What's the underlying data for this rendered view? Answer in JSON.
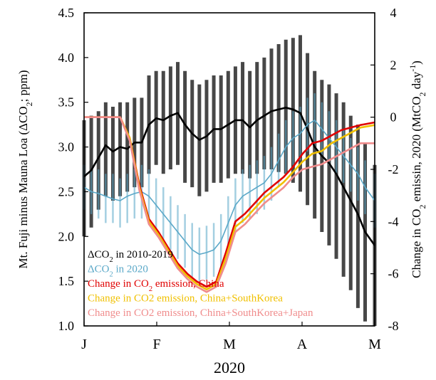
{
  "chart_data": {
    "type": "line",
    "title": "",
    "xlabel": "2020",
    "ylabel_left_parts": [
      "Mt. Fuji minus Mauna Loa (",
      "Δ",
      "CO",
      "2",
      "; ppm)"
    ],
    "ylabel_right_parts": [
      "Change in CO",
      "2",
      " emissin, 2020 (MtCO",
      "2",
      " day",
      "-1",
      ")"
    ],
    "x_ticks": [
      "J",
      "F",
      "M",
      "A",
      "M"
    ],
    "y_left": {
      "min": 1.0,
      "max": 4.5,
      "ticks": [
        "1.0",
        "1.5",
        "2.0",
        "2.5",
        "3.0",
        "3.5",
        "4.0",
        "4.5"
      ]
    },
    "y_right": {
      "min": -8,
      "max": 4,
      "ticks": [
        "-8",
        "-6",
        "-4",
        "-2",
        "0",
        "2",
        "4"
      ]
    },
    "grid": false,
    "legend_position": "bottom-left",
    "legend": [
      {
        "id": "hist",
        "parts": [
          "Δ",
          "CO",
          "2",
          " in 2010-2019"
        ],
        "color": "#000000"
      },
      {
        "id": "now",
        "parts": [
          "Δ",
          "CO",
          "2",
          " in 2020"
        ],
        "color": "#5aa8c8"
      },
      {
        "id": "china",
        "parts": [
          "Change in CO",
          "2",
          " emission, China"
        ],
        "color": "#e00000"
      },
      {
        "id": "cnkr",
        "parts": [
          "Change in CO2 emission,  China+SouthKorea"
        ],
        "color": "#f0c000"
      },
      {
        "id": "cnkrjp",
        "parts": [
          "Change in CO2 emission,  China+SouthKorea+Japan"
        ],
        "color": "#f08c8c"
      }
    ],
    "x_domain": {
      "start": "2020-01-01",
      "end": "2020-05-01"
    },
    "series": [
      {
        "axis": "left",
        "color": "#000000",
        "x": [
          "2020-01-01",
          "2020-01-04",
          "2020-01-07",
          "2020-01-10",
          "2020-01-13",
          "2020-01-16",
          "2020-01-19",
          "2020-01-22",
          "2020-01-25",
          "2020-01-28",
          "2020-01-31",
          "2020-02-03",
          "2020-02-06",
          "2020-02-09",
          "2020-02-12",
          "2020-02-15",
          "2020-02-18",
          "2020-02-21",
          "2020-02-24",
          "2020-02-27",
          "2020-03-01",
          "2020-03-04",
          "2020-03-07",
          "2020-03-10",
          "2020-03-13",
          "2020-03-16",
          "2020-03-19",
          "2020-03-22",
          "2020-03-25",
          "2020-03-28",
          "2020-03-31",
          "2020-04-03",
          "2020-04-06",
          "2020-04-09",
          "2020-04-12",
          "2020-04-15",
          "2020-04-18",
          "2020-04-21",
          "2020-04-24",
          "2020-04-27",
          "2020-05-01"
        ],
        "y": [
          2.67,
          2.74,
          2.88,
          3.02,
          2.95,
          3.0,
          2.98,
          3.05,
          3.05,
          3.25,
          3.32,
          3.3,
          3.35,
          3.38,
          3.25,
          3.15,
          3.08,
          3.12,
          3.2,
          3.2,
          3.25,
          3.3,
          3.3,
          3.22,
          3.3,
          3.35,
          3.4,
          3.42,
          3.44,
          3.42,
          3.38,
          3.2,
          3.0,
          2.9,
          2.82,
          2.7,
          2.55,
          2.4,
          2.25,
          2.05,
          1.9
        ],
        "y_low": [
          2.0,
          2.1,
          2.3,
          2.45,
          2.4,
          2.45,
          2.5,
          2.55,
          2.55,
          2.7,
          2.8,
          2.7,
          2.75,
          2.8,
          2.6,
          2.55,
          2.45,
          2.5,
          2.6,
          2.6,
          2.65,
          2.7,
          2.7,
          2.65,
          2.7,
          2.75,
          2.75,
          2.72,
          2.7,
          2.6,
          2.5,
          2.35,
          2.2,
          2.05,
          1.9,
          1.75,
          1.55,
          1.4,
          1.2,
          1.05,
          1.0
        ],
        "y_high": [
          3.3,
          3.35,
          3.4,
          3.5,
          3.45,
          3.5,
          3.5,
          3.55,
          3.55,
          3.8,
          3.85,
          3.85,
          3.9,
          3.95,
          3.85,
          3.75,
          3.7,
          3.75,
          3.8,
          3.8,
          3.85,
          3.9,
          3.95,
          3.85,
          3.95,
          4.0,
          4.1,
          4.15,
          4.2,
          4.22,
          4.25,
          4.05,
          3.85,
          3.75,
          3.7,
          3.6,
          3.5,
          3.35,
          3.25,
          3.05,
          2.8
        ]
      },
      {
        "axis": "left",
        "color": "#5aa8c8",
        "x": [
          "2020-01-01",
          "2020-01-04",
          "2020-01-07",
          "2020-01-10",
          "2020-01-13",
          "2020-01-16",
          "2020-01-19",
          "2020-01-22",
          "2020-01-25",
          "2020-01-28",
          "2020-01-31",
          "2020-02-03",
          "2020-02-06",
          "2020-02-09",
          "2020-02-12",
          "2020-02-15",
          "2020-02-18",
          "2020-02-21",
          "2020-02-24",
          "2020-02-27",
          "2020-03-01",
          "2020-03-04",
          "2020-03-07",
          "2020-03-10",
          "2020-03-13",
          "2020-03-16",
          "2020-03-19",
          "2020-03-22",
          "2020-03-25",
          "2020-03-28",
          "2020-03-31",
          "2020-04-03",
          "2020-04-06",
          "2020-04-09",
          "2020-04-12",
          "2020-04-15",
          "2020-04-18",
          "2020-04-21",
          "2020-04-24",
          "2020-04-27",
          "2020-05-01"
        ],
        "y": [
          2.55,
          2.5,
          2.48,
          2.45,
          2.42,
          2.4,
          2.45,
          2.48,
          2.5,
          2.45,
          2.35,
          2.25,
          2.15,
          2.05,
          1.95,
          1.85,
          1.8,
          1.82,
          1.85,
          1.95,
          2.15,
          2.35,
          2.45,
          2.5,
          2.55,
          2.6,
          2.7,
          2.85,
          3.0,
          3.1,
          3.15,
          3.25,
          3.3,
          3.2,
          3.1,
          3.0,
          2.9,
          2.8,
          2.7,
          2.55,
          2.4
        ],
        "y_low": [
          2.3,
          2.25,
          2.2,
          2.15,
          2.15,
          2.1,
          2.15,
          2.2,
          2.2,
          2.15,
          2.05,
          1.95,
          1.85,
          1.75,
          1.65,
          1.55,
          1.5,
          1.52,
          1.55,
          1.65,
          1.85,
          2.05,
          2.15,
          2.2,
          2.25,
          2.3,
          2.4,
          2.55,
          2.7,
          2.8,
          2.85,
          2.95,
          3.0,
          2.9,
          2.8,
          2.7,
          2.6,
          2.5,
          2.4,
          2.25,
          2.1
        ],
        "y_high": [
          2.8,
          2.75,
          2.75,
          2.7,
          2.7,
          2.65,
          2.7,
          2.75,
          2.8,
          2.75,
          2.65,
          2.55,
          2.45,
          2.35,
          2.25,
          2.15,
          2.1,
          2.12,
          2.15,
          2.25,
          2.45,
          2.65,
          2.75,
          2.8,
          2.85,
          2.9,
          3.0,
          3.15,
          3.3,
          3.4,
          3.45,
          3.55,
          3.6,
          3.5,
          3.4,
          3.3,
          3.2,
          3.1,
          3.0,
          2.85,
          2.7
        ]
      },
      {
        "axis": "right",
        "color": "#e00000",
        "x": [
          "2020-01-01",
          "2020-01-16",
          "2020-01-20",
          "2020-01-24",
          "2020-01-28",
          "2020-02-01",
          "2020-02-05",
          "2020-02-09",
          "2020-02-13",
          "2020-02-17",
          "2020-02-21",
          "2020-02-25",
          "2020-02-29",
          "2020-03-04",
          "2020-03-08",
          "2020-03-12",
          "2020-03-16",
          "2020-03-20",
          "2020-03-24",
          "2020-03-28",
          "2020-04-01",
          "2020-04-05",
          "2020-04-09",
          "2020-04-13",
          "2020-04-17",
          "2020-04-21",
          "2020-04-25",
          "2020-05-01"
        ],
        "y": [
          0.0,
          0.0,
          -0.8,
          -2.6,
          -3.9,
          -4.4,
          -5.0,
          -5.6,
          -6.0,
          -6.3,
          -6.5,
          -6.3,
          -5.2,
          -4.0,
          -3.7,
          -3.3,
          -2.9,
          -2.6,
          -2.3,
          -1.9,
          -1.4,
          -1.0,
          -0.9,
          -0.7,
          -0.5,
          -0.4,
          -0.3,
          -0.2
        ]
      },
      {
        "axis": "right",
        "color": "#f0c000",
        "x": [
          "2020-01-01",
          "2020-01-16",
          "2020-01-20",
          "2020-01-24",
          "2020-01-28",
          "2020-02-01",
          "2020-02-05",
          "2020-02-09",
          "2020-02-13",
          "2020-02-17",
          "2020-02-21",
          "2020-02-25",
          "2020-02-29",
          "2020-03-04",
          "2020-03-08",
          "2020-03-12",
          "2020-03-16",
          "2020-03-20",
          "2020-03-24",
          "2020-03-28",
          "2020-04-01",
          "2020-04-05",
          "2020-04-09",
          "2020-04-13",
          "2020-04-17",
          "2020-04-21",
          "2020-04-25",
          "2020-05-01"
        ],
        "y": [
          0.0,
          0.0,
          -0.8,
          -2.7,
          -4.0,
          -4.5,
          -5.1,
          -5.7,
          -6.1,
          -6.4,
          -6.6,
          -6.4,
          -5.4,
          -4.2,
          -3.9,
          -3.5,
          -3.1,
          -2.8,
          -2.5,
          -2.1,
          -1.7,
          -1.4,
          -1.3,
          -1.0,
          -0.8,
          -0.6,
          -0.4,
          -0.3
        ]
      },
      {
        "axis": "right",
        "color": "#f08c8c",
        "x": [
          "2020-01-01",
          "2020-01-16",
          "2020-01-20",
          "2020-01-24",
          "2020-01-28",
          "2020-02-01",
          "2020-02-05",
          "2020-02-09",
          "2020-02-13",
          "2020-02-17",
          "2020-02-21",
          "2020-02-25",
          "2020-02-29",
          "2020-03-04",
          "2020-03-08",
          "2020-03-12",
          "2020-03-16",
          "2020-03-20",
          "2020-03-24",
          "2020-03-28",
          "2020-04-01",
          "2020-04-05",
          "2020-04-09",
          "2020-04-13",
          "2020-04-17",
          "2020-04-21",
          "2020-04-25",
          "2020-05-01"
        ],
        "y": [
          0.0,
          0.0,
          -0.9,
          -2.8,
          -4.1,
          -4.6,
          -5.2,
          -5.8,
          -6.2,
          -6.5,
          -6.7,
          -6.5,
          -5.6,
          -4.4,
          -4.1,
          -3.7,
          -3.3,
          -3.0,
          -2.7,
          -2.3,
          -2.0,
          -1.9,
          -1.8,
          -1.6,
          -1.4,
          -1.2,
          -1.0,
          -1.0
        ]
      }
    ]
  }
}
